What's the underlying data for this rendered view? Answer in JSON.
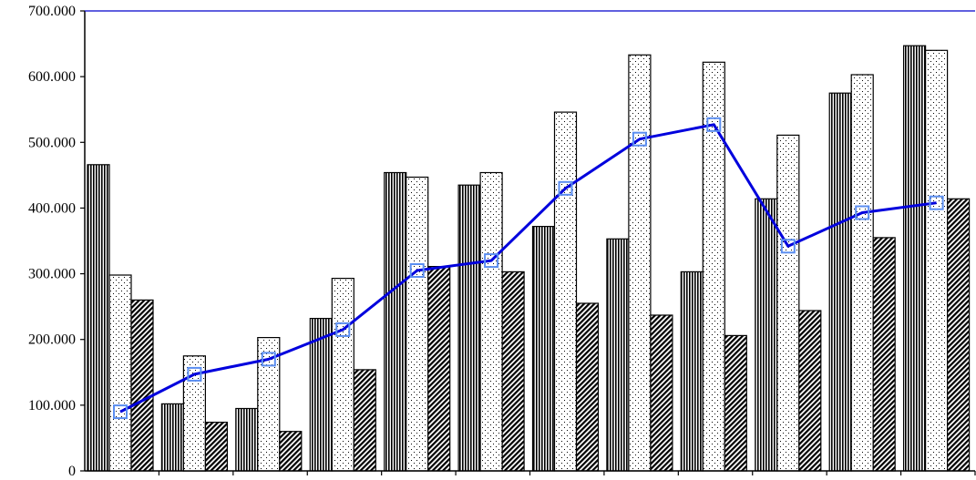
{
  "chart_data": {
    "type": "bar",
    "ylim": [
      0,
      700000
    ],
    "y_tick_labels": [
      "0",
      "100.000",
      "200.000",
      "300.000",
      "400.000",
      "500.000",
      "600.000",
      "700.000"
    ],
    "y_tick_values": [
      0,
      100000,
      200000,
      300000,
      400000,
      500000,
      600000,
      700000
    ],
    "grid": false,
    "categories_count": 12,
    "series": [
      {
        "type": "bar",
        "pattern": "vertical-stripes",
        "values": [
          466000,
          102000,
          95000,
          232000,
          454000,
          435000,
          372000,
          353000,
          303000,
          414000,
          575000,
          647000
        ]
      },
      {
        "type": "bar",
        "pattern": "dots",
        "values": [
          298000,
          175000,
          203000,
          293000,
          447000,
          454000,
          546000,
          633000,
          622000,
          511000,
          603000,
          640000
        ]
      },
      {
        "type": "bar",
        "pattern": "diagonal-stripes",
        "values": [
          260000,
          74000,
          60000,
          154000,
          311000,
          303000,
          255000,
          237000,
          206000,
          244000,
          355000,
          414000
        ]
      },
      {
        "type": "line",
        "color": "#0000dd",
        "marker_color": "#5b8ef0",
        "values": [
          90000,
          147000,
          170000,
          215000,
          305000,
          320000,
          430000,
          505000,
          527000,
          342000,
          393000,
          408000
        ]
      }
    ]
  }
}
